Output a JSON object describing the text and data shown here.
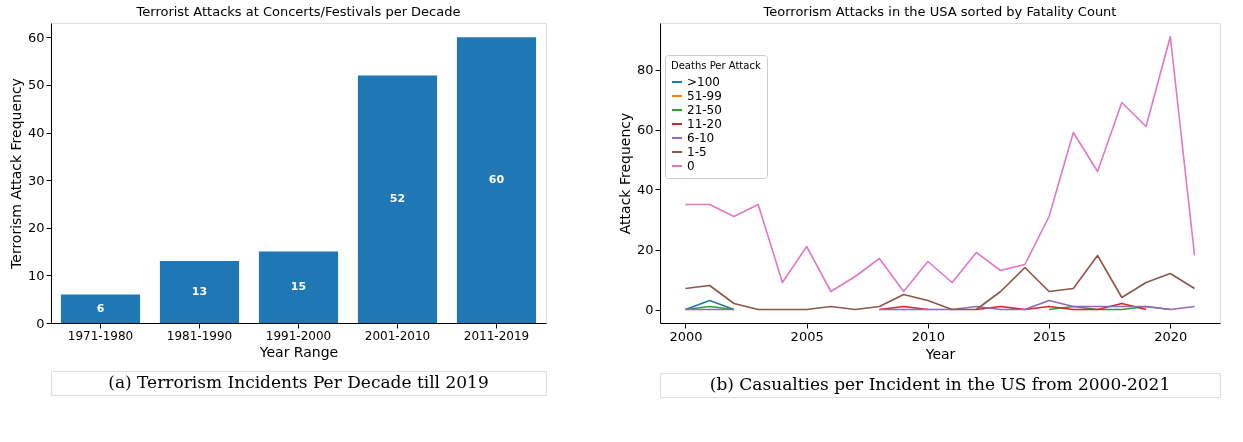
{
  "chart_data": [
    {
      "type": "bar",
      "title": "Terrorist Attacks at Concerts/Festivals per Decade",
      "xlabel": "Year Range",
      "ylabel": "Terrorism Attack Frequency",
      "categories": [
        "1971-1980",
        "1981-1990",
        "1991-2000",
        "2001-2010",
        "2011-2019"
      ],
      "values": [
        6,
        13,
        15,
        52,
        60
      ],
      "color": "#1f77b4",
      "ylim": [
        0,
        63
      ],
      "yticks": [
        0,
        10,
        20,
        30,
        40,
        50,
        60
      ],
      "data_labels": true,
      "grid": false,
      "legend": false,
      "annotations": [
        "(a) Terrorism Incidents Per Decade till 2019"
      ]
    },
    {
      "type": "line",
      "title": "Teorrorism Attacks in the USA sorted by Fatality Count",
      "xlabel": "Year",
      "ylabel": "Attack Frequency",
      "legend_title": "Deaths Per Attack",
      "legend": "top left",
      "grid": false,
      "x": [
        2000,
        2001,
        2002,
        2003,
        2004,
        2005,
        2006,
        2007,
        2008,
        2009,
        2010,
        2011,
        2012,
        2013,
        2014,
        2015,
        2016,
        2017,
        2018,
        2019,
        2020,
        2021
      ],
      "xlim": [
        1998.95,
        2022.05
      ],
      "xticks": [
        2000,
        2005,
        2010,
        2015,
        2020
      ],
      "ylim": [
        -4.5,
        95.5
      ],
      "yticks": [
        0,
        20,
        40,
        60,
        80
      ],
      "series": [
        {
          "name": ">100",
          "color": "#1f77b4",
          "values": [
            0,
            3,
            0,
            null,
            null,
            null,
            null,
            null,
            null,
            null,
            null,
            null,
            null,
            null,
            null,
            null,
            null,
            null,
            null,
            null,
            null,
            null
          ]
        },
        {
          "name": "51-99",
          "color": "#ff7f0e",
          "values": [
            null,
            null,
            null,
            null,
            null,
            null,
            null,
            null,
            null,
            null,
            null,
            null,
            null,
            null,
            null,
            null,
            null,
            null,
            null,
            null,
            null,
            null
          ]
        },
        {
          "name": "21-50",
          "color": "#2ca02c",
          "values": [
            0,
            1,
            0,
            null,
            null,
            null,
            null,
            null,
            null,
            null,
            null,
            null,
            null,
            null,
            null,
            0,
            1,
            0,
            0,
            1,
            0,
            null
          ]
        },
        {
          "name": "11-20",
          "color": "#d62728",
          "values": [
            null,
            null,
            null,
            null,
            null,
            null,
            null,
            null,
            0,
            1,
            0,
            null,
            0,
            1,
            0,
            1,
            0,
            0,
            2,
            0,
            null,
            null
          ]
        },
        {
          "name": "6-10",
          "color": "#9467bd",
          "values": [
            0,
            0,
            0,
            null,
            null,
            null,
            null,
            null,
            0,
            0,
            0,
            0,
            1,
            0,
            0,
            3,
            1,
            1,
            1,
            1,
            0,
            1
          ]
        },
        {
          "name": "1-5",
          "color": "#8c564b",
          "values": [
            7,
            8,
            2,
            0,
            0,
            0,
            1,
            0,
            1,
            5,
            3,
            0,
            0,
            6,
            14,
            6,
            7,
            18,
            4,
            9,
            12,
            7
          ]
        },
        {
          "name": "0",
          "color": "#e377c2",
          "values": [
            35,
            35,
            31,
            35,
            9,
            21,
            6,
            11,
            17,
            6,
            16,
            9,
            19,
            13,
            15,
            31,
            59,
            46,
            69,
            61,
            91,
            18
          ]
        }
      ],
      "annotations": [
        "(b) Casualties per Incident in the US from 2000-2021"
      ]
    }
  ]
}
